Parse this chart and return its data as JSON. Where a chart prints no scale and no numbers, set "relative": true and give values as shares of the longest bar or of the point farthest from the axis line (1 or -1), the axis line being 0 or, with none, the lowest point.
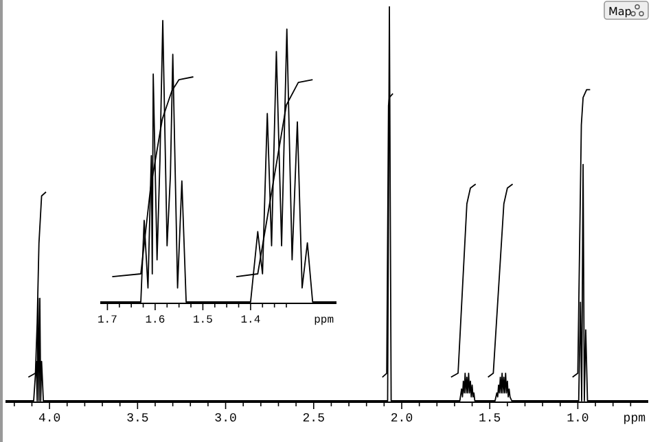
{
  "chart_data": [
    {
      "type": "line",
      "relative": true,
      "xlim": [
        4.25,
        0.6
      ],
      "xlabel": "ppm",
      "annotations": [
        "Map"
      ],
      "xticks": [
        {
          "value": 4.2,
          "label": null
        },
        {
          "value": 4.1,
          "label": null
        },
        {
          "value": 4,
          "label": "4.0"
        },
        {
          "value": 3.9,
          "label": null
        },
        {
          "value": 3.8,
          "label": null
        },
        {
          "value": 3.7,
          "label": null
        },
        {
          "value": 3.6,
          "label": null
        },
        {
          "value": 3.5,
          "label": "3.5"
        },
        {
          "value": 3.4,
          "label": null
        },
        {
          "value": 3.3,
          "label": null
        },
        {
          "value": 3.2,
          "label": null
        },
        {
          "value": 3.1,
          "label": null
        },
        {
          "value": 3,
          "label": "3.0"
        },
        {
          "value": 2.9,
          "label": null
        },
        {
          "value": 2.8,
          "label": null
        },
        {
          "value": 2.7,
          "label": null
        },
        {
          "value": 2.6,
          "label": null
        },
        {
          "value": 2.5,
          "label": "2.5"
        },
        {
          "value": 2.4,
          "label": null
        },
        {
          "value": 2.3,
          "label": null
        },
        {
          "value": 2.2,
          "label": null
        },
        {
          "value": 2.1,
          "label": null
        },
        {
          "value": 2,
          "label": "2.0"
        },
        {
          "value": 1.9,
          "label": null
        },
        {
          "value": 1.8,
          "label": null
        },
        {
          "value": 1.7,
          "label": null
        },
        {
          "value": 1.6,
          "label": null
        },
        {
          "value": 1.5,
          "label": "1.5"
        },
        {
          "value": 1.4,
          "label": null
        },
        {
          "value": 1.3,
          "label": null
        },
        {
          "value": 1.2,
          "label": null
        },
        {
          "value": 1.1,
          "label": null
        },
        {
          "value": 1,
          "label": "1.0"
        },
        {
          "value": 0.9,
          "label": null
        },
        {
          "value": 0.8,
          "label": null
        },
        {
          "value": 0.7,
          "label": null
        }
      ],
      "series": [
        {
          "color": "#000000",
          "x": [
            4.25,
            4.09,
            4.075,
            4.07,
            4.065,
            4.06,
            4.055,
            4.05,
            4.045,
            4.035,
            2.08,
            2.07,
            2.06,
            1.67,
            1.66,
            1.655,
            1.65,
            1.645,
            1.64,
            1.635,
            1.63,
            1.625,
            1.62,
            1.615,
            1.61,
            1.605,
            1.6,
            1.595,
            1.59,
            1.585,
            1.47,
            1.46,
            1.455,
            1.45,
            1.445,
            1.44,
            1.435,
            1.43,
            1.425,
            1.42,
            1.415,
            1.41,
            1.405,
            1.4,
            1.395,
            1.39,
            1.385,
            1.375,
            0.995,
            0.985,
            0.978,
            0.97,
            0.963,
            0.955,
            0.945,
            0.6
          ],
          "values": [
            0,
            0,
            0.1,
            0,
            0.26,
            0,
            0.26,
            0,
            0.1,
            0,
            0,
            1,
            0,
            0,
            0.03,
            0.01,
            0.05,
            0.02,
            0.07,
            0.02,
            0.06,
            0.02,
            0.07,
            0.02,
            0.05,
            0.01,
            0.04,
            0.01,
            0.02,
            0,
            0,
            0.02,
            0.01,
            0.04,
            0.02,
            0.06,
            0.02,
            0.07,
            0.02,
            0.06,
            0.02,
            0.07,
            0.02,
            0.05,
            0.01,
            0.03,
            0.01,
            0,
            0,
            0.25,
            0,
            0.6,
            0,
            0.18,
            0,
            0
          ]
        },
        {
          "color": "#000000",
          "x": [
            4.12,
            4.08,
            4.07,
            4.06,
            4.045,
            4.02
          ],
          "values": [
            0.06,
            0.07,
            0.2,
            0.4,
            0.52,
            0.53
          ]
        },
        {
          "color": "#000000",
          "x": [
            2.11,
            2.085,
            2.075,
            2.07,
            2.05
          ],
          "values": [
            0.06,
            0.07,
            0.75,
            0.77,
            0.78
          ]
        },
        {
          "color": "#000000",
          "x": [
            1.72,
            1.68,
            1.63,
            1.61,
            1.58
          ],
          "values": [
            0.06,
            0.07,
            0.5,
            0.54,
            0.55
          ]
        },
        {
          "color": "#000000",
          "x": [
            1.51,
            1.48,
            1.42,
            1.4,
            1.37
          ],
          "values": [
            0.06,
            0.07,
            0.5,
            0.54,
            0.55
          ]
        },
        {
          "color": "#000000",
          "x": [
            1.03,
            1.0,
            0.98,
            0.97,
            0.95,
            0.93
          ],
          "values": [
            0.06,
            0.07,
            0.7,
            0.77,
            0.79,
            0.79
          ]
        }
      ]
    },
    {
      "type": "line",
      "relative": true,
      "xlim": [
        1.715,
        1.22
      ],
      "xlabel": "ppm",
      "xticks": [
        {
          "value": 1.7,
          "label": "1.7"
        },
        {
          "value": 1.675,
          "label": null
        },
        {
          "value": 1.65,
          "label": null
        },
        {
          "value": 1.625,
          "label": null
        },
        {
          "value": 1.6,
          "label": "1.6"
        },
        {
          "value": 1.575,
          "label": null
        },
        {
          "value": 1.55,
          "label": null
        },
        {
          "value": 1.525,
          "label": null
        },
        {
          "value": 1.5,
          "label": "1.5"
        },
        {
          "value": 1.475,
          "label": null
        },
        {
          "value": 1.45,
          "label": null
        },
        {
          "value": 1.425,
          "label": null
        },
        {
          "value": 1.4,
          "label": "1.4"
        },
        {
          "value": 1.375,
          "label": null
        },
        {
          "value": 1.35,
          "label": null
        },
        {
          "value": 1.325,
          "label": null
        }
      ],
      "series": [
        {
          "color": "#000000",
          "x": [
            1.715,
            1.63,
            1.623,
            1.615,
            1.608,
            1.606,
            1.604,
            1.596,
            1.59,
            1.584,
            1.575,
            1.568,
            1.563,
            1.553,
            1.544,
            1.535,
            1.4,
            1.385,
            1.375,
            1.365,
            1.356,
            1.346,
            1.335,
            1.324,
            1.313,
            1.302,
            1.292,
            1.281,
            1.27,
            1.22
          ],
          "values": [
            0,
            0,
            0.29,
            0.05,
            0.52,
            0.1,
            0.81,
            0.15,
            0.5,
            1,
            0.2,
            0.45,
            0.88,
            0.05,
            0.43,
            0,
            0,
            0.25,
            0.1,
            0.67,
            0.2,
            0.89,
            0.2,
            0.97,
            0.15,
            0.64,
            0.05,
            0.21,
            0,
            0
          ]
        },
        {
          "color": "#000000",
          "x": [
            1.69,
            1.63,
            1.61,
            1.585,
            1.565,
            1.55,
            1.52
          ],
          "values": [
            0.09,
            0.1,
            0.4,
            0.65,
            0.75,
            0.79,
            0.8
          ]
        },
        {
          "color": "#000000",
          "x": [
            1.43,
            1.385,
            1.36,
            1.325,
            1.3,
            1.27
          ],
          "values": [
            0.09,
            0.1,
            0.35,
            0.7,
            0.78,
            0.79
          ]
        }
      ]
    }
  ]
}
